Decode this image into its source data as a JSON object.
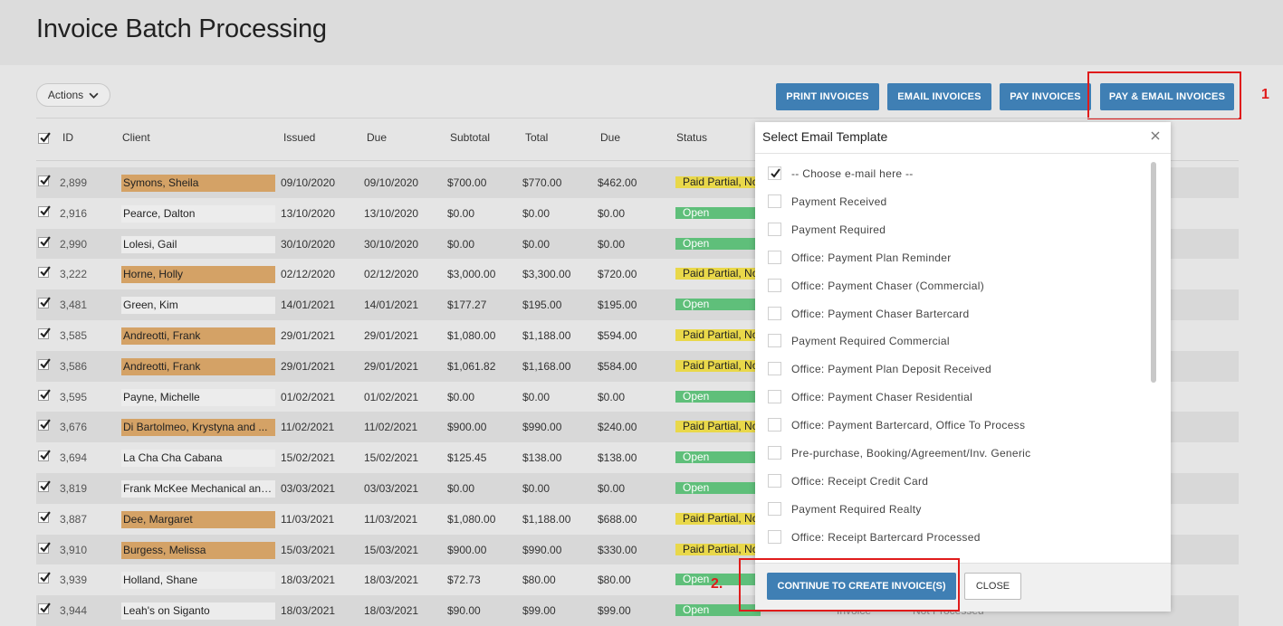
{
  "page": {
    "title": "Invoice Batch Processing"
  },
  "toolbar": {
    "actions_label": "Actions",
    "print_label": "PRINT INVOICES",
    "email_label": "EMAIL INVOICES",
    "pay_label": "PAY INVOICES",
    "pay_email_label": "PAY & EMAIL INVOICES"
  },
  "annotations": {
    "one": "1",
    "two": "2."
  },
  "table": {
    "headers": {
      "id": "ID",
      "client": "Client",
      "issued": "Issued",
      "due_date": "Due",
      "subtotal": "Subtotal",
      "total": "Total",
      "due": "Due",
      "status": "Status"
    },
    "rows": [
      {
        "id": "2,899",
        "client": "Symons, Sheila",
        "issued": "09/10/2020",
        "due_date": "09/10/2020",
        "subtotal": "$700.00",
        "total": "$770.00",
        "due": "$462.00",
        "status": "Paid Partial, Not",
        "status_kind": "partial",
        "client_kind": "orange"
      },
      {
        "id": "2,916",
        "client": "Pearce, Dalton",
        "issued": "13/10/2020",
        "due_date": "13/10/2020",
        "subtotal": "$0.00",
        "total": "$0.00",
        "due": "$0.00",
        "status": "Open",
        "status_kind": "open",
        "client_kind": "grey"
      },
      {
        "id": "2,990",
        "client": "Lolesi, Gail",
        "issued": "30/10/2020",
        "due_date": "30/10/2020",
        "subtotal": "$0.00",
        "total": "$0.00",
        "due": "$0.00",
        "status": "Open",
        "status_kind": "open",
        "client_kind": "grey"
      },
      {
        "id": "3,222",
        "client": "Horne, Holly",
        "issued": "02/12/2020",
        "due_date": "02/12/2020",
        "subtotal": "$3,000.00",
        "total": "$3,300.00",
        "due": "$720.00",
        "status": "Paid Partial, Not",
        "status_kind": "partial",
        "client_kind": "orange"
      },
      {
        "id": "3,481",
        "client": "Green, Kim",
        "issued": "14/01/2021",
        "due_date": "14/01/2021",
        "subtotal": "$177.27",
        "total": "$195.00",
        "due": "$195.00",
        "status": "Open",
        "status_kind": "open",
        "client_kind": "grey"
      },
      {
        "id": "3,585",
        "client": "Andreotti, Frank",
        "issued": "29/01/2021",
        "due_date": "29/01/2021",
        "subtotal": "$1,080.00",
        "total": "$1,188.00",
        "due": "$594.00",
        "status": "Paid Partial, Not",
        "status_kind": "partial",
        "client_kind": "orange"
      },
      {
        "id": "3,586",
        "client": "Andreotti, Frank",
        "issued": "29/01/2021",
        "due_date": "29/01/2021",
        "subtotal": "$1,061.82",
        "total": "$1,168.00",
        "due": "$584.00",
        "status": "Paid Partial, Not",
        "status_kind": "partial",
        "client_kind": "orange"
      },
      {
        "id": "3,595",
        "client": "Payne, Michelle",
        "issued": "01/02/2021",
        "due_date": "01/02/2021",
        "subtotal": "$0.00",
        "total": "$0.00",
        "due": "$0.00",
        "status": "Open",
        "status_kind": "open",
        "client_kind": "grey"
      },
      {
        "id": "3,676",
        "client": "Di Bartolmeo, Krystyna and ...",
        "issued": "11/02/2021",
        "due_date": "11/02/2021",
        "subtotal": "$900.00",
        "total": "$990.00",
        "due": "$240.00",
        "status": "Paid Partial, Not",
        "status_kind": "partial",
        "client_kind": "orange"
      },
      {
        "id": "3,694",
        "client": "La Cha Cha Cabana",
        "issued": "15/02/2021",
        "due_date": "15/02/2021",
        "subtotal": "$125.45",
        "total": "$138.00",
        "due": "$138.00",
        "status": "Open",
        "status_kind": "open",
        "client_kind": "grey"
      },
      {
        "id": "3,819",
        "client": "Frank McKee Mechanical and...",
        "issued": "03/03/2021",
        "due_date": "03/03/2021",
        "subtotal": "$0.00",
        "total": "$0.00",
        "due": "$0.00",
        "status": "Open",
        "status_kind": "open",
        "client_kind": "grey"
      },
      {
        "id": "3,887",
        "client": "Dee, Margaret",
        "issued": "11/03/2021",
        "due_date": "11/03/2021",
        "subtotal": "$1,080.00",
        "total": "$1,188.00",
        "due": "$688.00",
        "status": "Paid Partial, Not",
        "status_kind": "partial",
        "client_kind": "orange"
      },
      {
        "id": "3,910",
        "client": "Burgess, Melissa",
        "issued": "15/03/2021",
        "due_date": "15/03/2021",
        "subtotal": "$900.00",
        "total": "$990.00",
        "due": "$330.00",
        "status": "Paid Partial, Not",
        "status_kind": "partial",
        "client_kind": "orange"
      },
      {
        "id": "3,939",
        "client": "Holland, Shane",
        "issued": "18/03/2021",
        "due_date": "18/03/2021",
        "subtotal": "$72.73",
        "total": "$80.00",
        "due": "$80.00",
        "status": "Open",
        "status_kind": "open",
        "client_kind": "grey"
      },
      {
        "id": "3,944",
        "client": "Leah's on Siganto",
        "issued": "18/03/2021",
        "due_date": "18/03/2021",
        "subtotal": "$90.00",
        "total": "$99.00",
        "due": "$99.00",
        "status": "Open",
        "status_kind": "open",
        "client_kind": "grey",
        "type": "Invoice",
        "processed": "Not Processed"
      }
    ]
  },
  "modal": {
    "title": "Select Email Template",
    "options": [
      {
        "label": "-- Choose e-mail here --",
        "checked": true
      },
      {
        "label": "Payment Received",
        "checked": false
      },
      {
        "label": "Payment Required",
        "checked": false
      },
      {
        "label": "Office: Payment Plan Reminder",
        "checked": false
      },
      {
        "label": "Office: Payment Chaser (Commercial)",
        "checked": false
      },
      {
        "label": "Office: Payment Chaser Bartercard",
        "checked": false
      },
      {
        "label": "Payment Required Commercial",
        "checked": false
      },
      {
        "label": "Office: Payment Plan Deposit Received",
        "checked": false
      },
      {
        "label": "Office: Payment Chaser Residential",
        "checked": false
      },
      {
        "label": "Office: Payment Bartercard, Office To Process",
        "checked": false
      },
      {
        "label": "Pre-purchase, Booking/Agreement/Inv. Generic",
        "checked": false
      },
      {
        "label": "Office: Receipt Credit Card",
        "checked": false
      },
      {
        "label": "Payment Required Realty",
        "checked": false
      },
      {
        "label": "Office: Receipt Bartercard Processed",
        "checked": false
      }
    ],
    "continue_label": "CONTINUE TO CREATE INVOICE(S)",
    "close_label": "CLOSE"
  },
  "colors": {
    "primary": "#3f7fb4",
    "annotation": "#e01b1b",
    "client_highlight": "#d4a266",
    "status_partial": "#e9d84a",
    "status_open": "#5fbf7a"
  },
  "icons": {
    "actions": "chevron-down-icon",
    "check": "checkmark-icon",
    "close": "close-icon"
  }
}
